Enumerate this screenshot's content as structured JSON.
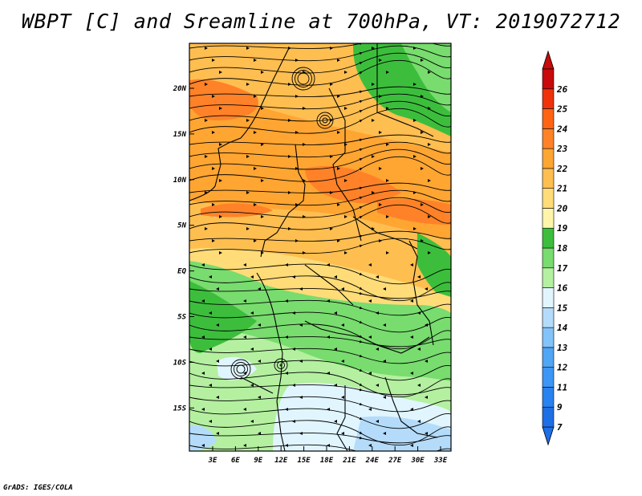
{
  "title": "WBPT [C] and Sreamline at 700hPa, VT: 2019072712",
  "credit": "GrADS: IGES/COLA",
  "map": {
    "lon_ticks": [
      "3E",
      "6E",
      "9E",
      "12E",
      "15E",
      "18E",
      "21E",
      "24E",
      "27E",
      "30E",
      "33E"
    ],
    "lat_ticks": [
      "20N",
      "15N",
      "10N",
      "5N",
      "EQ",
      "5S",
      "10S",
      "15S"
    ]
  },
  "colorbar": {
    "levels": [
      "7",
      "9",
      "11",
      "12",
      "13",
      "14",
      "15",
      "16",
      "17",
      "18",
      "19",
      "20",
      "21",
      "22",
      "23",
      "24",
      "25",
      "26"
    ],
    "colors": [
      "#1e6ee6",
      "#2882f0",
      "#3c96f5",
      "#50a5f5",
      "#82c3fa",
      "#b4dcfa",
      "#e1f5ff",
      "#b4f0a0",
      "#78dc6e",
      "#3cbe3c",
      "#fff5aa",
      "#ffdc78",
      "#ffbe50",
      "#ffa532",
      "#ff8228",
      "#ff6414",
      "#f0320a",
      "#c80a0a"
    ]
  }
}
